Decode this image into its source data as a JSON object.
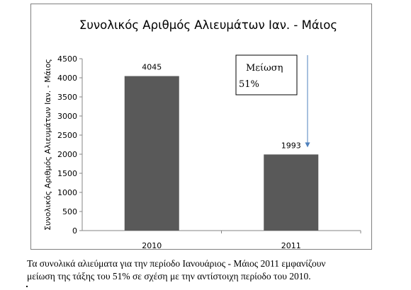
{
  "chart_data": {
    "type": "bar",
    "title": "Συνολικός Αριθμός Αλιευμάτων Ιαν. - Μάιος",
    "ylabel": "Συνολικός Αριθμός Αλιευμάτων Ιαν. - Μάιος",
    "xlabel": "",
    "categories": [
      "2010",
      "2011"
    ],
    "values": [
      4045,
      1993
    ],
    "data_labels": [
      "4045",
      "1993"
    ],
    "ylim": [
      0,
      4500
    ],
    "yticks": [
      0,
      500,
      1000,
      1500,
      2000,
      2500,
      3000,
      3500,
      4000,
      4500
    ],
    "grid": false,
    "legend": "none",
    "bar_color": "#595959",
    "annotation": {
      "line1": "Μείωση",
      "line2": "51%",
      "arrow_color": "#4f81bd",
      "points_to": "2011"
    }
  },
  "caption": {
    "line1": "Τα συνολικά αλιεύματα για την περίοδο Ιανουάριος - Μάιος 2011 εμφανίζουν",
    "line2": "μείωση της τάξης του 51% σε σχέση με την αντίστοιχη περίοδο του 2010."
  }
}
